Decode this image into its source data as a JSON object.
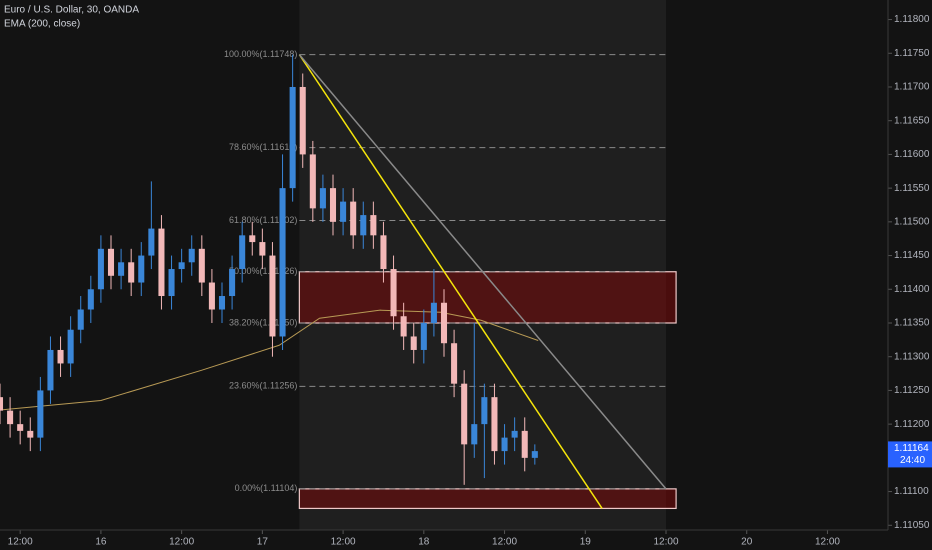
{
  "chart_data": {
    "type": "candlestick",
    "title": "Euro / U.S. Dollar, 30, OANDA",
    "subtitle": "EMA (200, close)",
    "x": [
      0,
      3,
      6,
      9,
      12,
      15,
      18,
      21,
      24,
      27,
      30,
      33,
      36,
      39,
      42,
      45,
      48,
      51,
      54,
      57,
      60,
      63,
      66,
      69,
      72,
      75,
      78,
      81,
      84,
      87,
      90,
      93,
      96,
      99,
      102,
      105,
      108,
      111,
      114,
      117,
      120,
      123,
      126,
      129,
      132,
      135,
      138,
      141,
      144,
      147,
      150,
      153,
      156,
      159
    ],
    "open": [
      1.1124,
      1.1122,
      1.112,
      1.1119,
      1.1118,
      1.1125,
      1.1131,
      1.1129,
      1.1134,
      1.1137,
      1.114,
      1.1146,
      1.1142,
      1.1144,
      1.1141,
      1.1145,
      1.1149,
      1.1139,
      1.1143,
      1.1144,
      1.1146,
      1.1141,
      1.1137,
      1.1139,
      1.1143,
      1.1148,
      1.1147,
      1.1145,
      1.1133,
      1.1155,
      1.117,
      1.116,
      1.1152,
      1.1155,
      1.115,
      1.1153,
      1.1148,
      1.1151,
      1.1148,
      1.1143,
      1.1136,
      1.1133,
      1.1131,
      1.1135,
      1.1138,
      1.1132,
      1.1126,
      1.1117,
      1.112,
      1.1124,
      1.1116,
      1.1118,
      1.1119,
      1.1115
    ],
    "high": [
      1.1126,
      1.1124,
      1.1122,
      1.1121,
      1.1127,
      1.1133,
      1.1133,
      1.1136,
      1.1139,
      1.1142,
      1.1148,
      1.1148,
      1.1146,
      1.1146,
      1.1147,
      1.1156,
      1.1151,
      1.1145,
      1.1146,
      1.1148,
      1.1148,
      1.1143,
      1.1141,
      1.1145,
      1.115,
      1.115,
      1.1149,
      1.1147,
      1.116,
      1.11748,
      1.1172,
      1.1162,
      1.1157,
      1.1157,
      1.1155,
      1.1155,
      1.1153,
      1.1153,
      1.115,
      1.1145,
      1.1138,
      1.1135,
      1.1137,
      1.1143,
      1.114,
      1.1134,
      1.1128,
      1.1135,
      1.1126,
      1.1126,
      1.112,
      1.1121,
      1.1121,
      1.1117
    ],
    "low": [
      1.112,
      1.1118,
      1.1117,
      1.1116,
      1.1116,
      1.1123,
      1.1127,
      1.1127,
      1.1132,
      1.1135,
      1.1138,
      1.114,
      1.114,
      1.1139,
      1.1139,
      1.1143,
      1.1137,
      1.1137,
      1.1141,
      1.1142,
      1.1139,
      1.1135,
      1.1135,
      1.1137,
      1.1141,
      1.1145,
      1.1143,
      1.113,
      1.1131,
      1.1153,
      1.1158,
      1.115,
      1.115,
      1.1148,
      1.1148,
      1.1146,
      1.1146,
      1.1146,
      1.1141,
      1.1134,
      1.1131,
      1.1129,
      1.1129,
      1.1133,
      1.113,
      1.1124,
      1.1111,
      1.1115,
      1.1112,
      1.1114,
      1.1114,
      1.1116,
      1.1113,
      1.1114
    ],
    "close": [
      1.1122,
      1.112,
      1.1119,
      1.1118,
      1.1125,
      1.1131,
      1.1129,
      1.1134,
      1.1137,
      1.114,
      1.1146,
      1.1142,
      1.1144,
      1.1141,
      1.1145,
      1.1149,
      1.1139,
      1.1143,
      1.1144,
      1.1146,
      1.1141,
      1.1137,
      1.1139,
      1.1143,
      1.1148,
      1.1147,
      1.1145,
      1.1133,
      1.1155,
      1.117,
      1.116,
      1.1152,
      1.1155,
      1.115,
      1.1153,
      1.1148,
      1.1151,
      1.1148,
      1.1143,
      1.1136,
      1.1133,
      1.1131,
      1.1135,
      1.1138,
      1.1132,
      1.1126,
      1.1117,
      1.112,
      1.1124,
      1.1116,
      1.1118,
      1.1119,
      1.1115,
      1.1116
    ],
    "up_color": "#3a86d8",
    "down_color": "#f2b8b8",
    "ema": {
      "color": "#b89a55",
      "x": [
        0,
        30,
        60,
        83,
        95,
        113,
        131,
        143,
        160
      ],
      "values": [
        1.11221,
        1.11235,
        1.1128,
        1.11317,
        1.11357,
        1.11369,
        1.11366,
        1.11354,
        1.11324
      ]
    },
    "fib": {
      "color": "#8a8a8a",
      "x": [
        89,
        198
      ],
      "levels": [
        {
          "value": 1.11748,
          "label": "100.00%(1.11748)"
        },
        {
          "value": 1.1161,
          "label": "78.60%(1.11610)"
        },
        {
          "value": 1.11502,
          "label": "61.80%(1.11502)"
        },
        {
          "value": 1.11426,
          "label": "50.00%(1.11426)"
        },
        {
          "value": 1.1135,
          "label": "38.20%(1.11350)"
        },
        {
          "value": 1.11256,
          "label": "23.60%(1.11256)"
        },
        {
          "value": 1.11104,
          "label": "0.00%(1.11104)"
        }
      ]
    },
    "zones": [
      {
        "x": [
          89,
          201
        ],
        "y": [
          1.1135,
          1.11426
        ]
      },
      {
        "x": [
          89,
          201
        ],
        "y": [
          1.11075,
          1.11104
        ]
      }
    ],
    "trend_lines": [
      {
        "color": "#f5e50a",
        "x": [
          89,
          179
        ],
        "y": [
          1.11748,
          1.11075
        ]
      },
      {
        "color": "#8a8a8a",
        "x": [
          89,
          198
        ],
        "y": [
          1.11748,
          1.11104
        ]
      }
    ],
    "shade": [
      89,
      198
    ],
    "xlim": [
      0,
      264
    ],
    "ylim": [
      1.11043,
      1.11829
    ],
    "xticks": [
      {
        "value": 6,
        "label": "12:00"
      },
      {
        "value": 30,
        "label": "16"
      },
      {
        "value": 54,
        "label": "12:00"
      },
      {
        "value": 78,
        "label": "17"
      },
      {
        "value": 102,
        "label": "12:00"
      },
      {
        "value": 126,
        "label": "18"
      },
      {
        "value": 150,
        "label": "12:00"
      },
      {
        "value": 174,
        "label": "19"
      },
      {
        "value": 198,
        "label": "12:00"
      },
      {
        "value": 222,
        "label": "20"
      },
      {
        "value": 246,
        "label": "12:00"
      }
    ],
    "yticks": [
      {
        "value": 1.118,
        "label": "1.11800"
      },
      {
        "value": 1.1175,
        "label": "1.11750"
      },
      {
        "value": 1.117,
        "label": "1.11700"
      },
      {
        "value": 1.1165,
        "label": "1.11650"
      },
      {
        "value": 1.116,
        "label": "1.11600"
      },
      {
        "value": 1.1155,
        "label": "1.11550"
      },
      {
        "value": 1.115,
        "label": "1.11500"
      },
      {
        "value": 1.1145,
        "label": "1.11450"
      },
      {
        "value": 1.114,
        "label": "1.11400"
      },
      {
        "value": 1.1135,
        "label": "1.11350"
      },
      {
        "value": 1.113,
        "label": "1.11300"
      },
      {
        "value": 1.1125,
        "label": "1.11250"
      },
      {
        "value": 1.112,
        "label": "1.11200"
      },
      {
        "value": 1.111,
        "label": "1.11100"
      },
      {
        "value": 1.1105,
        "label": "1.11050"
      }
    ],
    "last_price": {
      "value": 1.11164,
      "label": "1.11164",
      "countdown": "24:40",
      "color": "#2962ff"
    }
  }
}
